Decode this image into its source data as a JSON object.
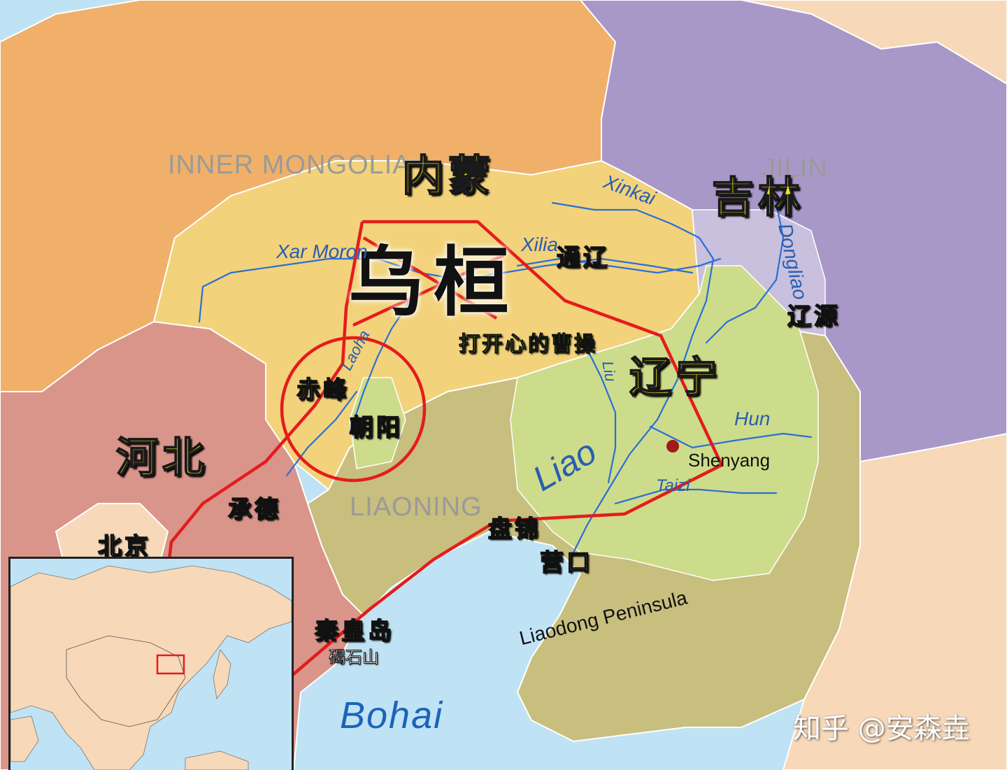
{
  "regions_en": {
    "inner_mongolia": "INNER MONGOLIA",
    "jilin": "JILIN",
    "liaoning": "LIAONING"
  },
  "regions_cn": {
    "inner_mongolia": "内蒙",
    "jilin": "吉林",
    "liaoning": "辽宁",
    "hebei": "河北"
  },
  "rivers": {
    "xar_moron": "Xar Moron",
    "xilia": "Xilia",
    "xinkai": "Xinkai",
    "dongliao": "Dongliao",
    "laoha": "Laoha",
    "liu": "Liu",
    "liao": "Liao",
    "hun": "Hun",
    "taizi": "Taizi"
  },
  "places_en": {
    "shenyang": "Shenyang",
    "liaodong": "Liaodong Peninsula",
    "bohai": "Bohai"
  },
  "places_cn": {
    "wuhuan": "乌桓",
    "tongliao": "通辽",
    "liaoyuan": "辽源",
    "dakai": "打开心的曹操",
    "chifeng": "赤峰",
    "chaoyang": "朝阳",
    "chengde": "承德",
    "beijing": "北京",
    "panjin": "盘锦",
    "yingkou": "营口",
    "qinhuangdao": "秦皇岛",
    "jieshishan": "碣石山"
  },
  "watermark": "知乎 @安森垚",
  "colors": {
    "sea": "#bfe3f4",
    "inner_mongolia_pale": "#f2d27a",
    "inner_mongolia_orange": "#f0b06a",
    "jilin_purple": "#a898c8",
    "liaoning_olive": "#c8be7e",
    "liao_basin_green": "#cddc8a",
    "hebei_red": "#d9958a",
    "annotation_red": "#e41c1c",
    "river_blue": "#2a6fd6"
  }
}
